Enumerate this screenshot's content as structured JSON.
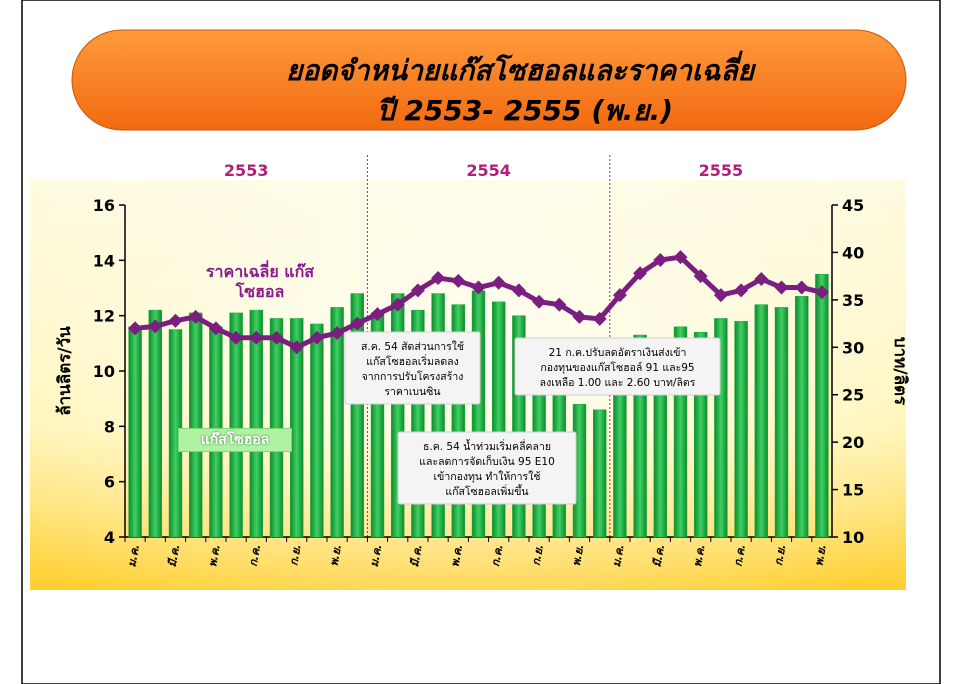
{
  "chart_data": {
    "type": "bar",
    "title": [
      "ยอดจำหน่ายแก๊สโซฮอลและราคาเฉลี่ย",
      "ปี 2553- 2555 (พ.ย.)"
    ],
    "periods": [
      "2553",
      "2554",
      "2555"
    ],
    "categories": [
      "ม.ค.",
      null,
      "มี.ค.",
      null,
      "พ.ค.",
      null,
      "ก.ค.",
      null,
      "ก.ย.",
      null,
      "พ.ย.",
      null,
      "ม.ค.",
      null,
      "มี.ค.",
      null,
      "พ.ค.",
      null,
      "ก.ค.",
      null,
      "ก.ย.",
      null,
      "พ.ย.",
      null,
      "ม.ค.",
      null,
      "มี.ค.",
      null,
      "พ.ค.",
      null,
      "ก.ค.",
      null,
      "ก.ย.",
      null,
      "พ.ย."
    ],
    "ylabel": "ล้านลิตร/วัน",
    "y2label": "บาท/ลิตร",
    "ylim": [
      4,
      16
    ],
    "yticks": [
      4,
      6,
      8,
      10,
      12,
      14,
      16
    ],
    "y2lim": [
      10,
      45
    ],
    "y2ticks": [
      10,
      15,
      20,
      25,
      30,
      35,
      40,
      45
    ],
    "series": [
      {
        "name": "แก๊สโซฮอล",
        "type": "bar",
        "color": "#1fae3f",
        "values": [
          11.6,
          12.2,
          11.5,
          12.1,
          11.6,
          12.1,
          12.2,
          11.9,
          11.9,
          11.7,
          12.3,
          12.8,
          12.1,
          12.8,
          12.2,
          12.8,
          12.4,
          12.9,
          12.5,
          12.0,
          10.8,
          9.8,
          8.8,
          8.6,
          10.5,
          11.3,
          11.2,
          11.6,
          11.4,
          11.9,
          11.8,
          12.4,
          12.3,
          12.7,
          13.5
        ]
      },
      {
        "name": "ราคาเฉลี่ย แก๊สโซฮอล",
        "type": "line",
        "axis": "y2",
        "color": "#7a1f80",
        "values": [
          32.0,
          32.2,
          32.8,
          33.2,
          32.0,
          31.0,
          31.0,
          31.0,
          30.0,
          31.0,
          31.5,
          32.5,
          33.5,
          34.5,
          36.0,
          37.3,
          37.0,
          36.3,
          36.8,
          36.0,
          34.8,
          34.5,
          33.2,
          33.0,
          35.5,
          37.8,
          39.2,
          39.5,
          37.5,
          35.5,
          36.0,
          37.2,
          36.3,
          36.3,
          35.8
        ]
      }
    ],
    "annotations": [
      [
        "ส.ค. 54 สัดส่วนการใช้",
        "แก๊สโซฮอลเริ่มลดลง",
        "จากการปรับโครงสร้าง",
        "ราคาเบนซิน"
      ],
      [
        "21 ก.ค.ปรับลดอัตราเงินส่งเข้า",
        "กองทุนของแก๊สโซฮอล์ 91 และ95",
        "ลงเหลือ 1.00 และ 2.60 บาท/ลิตร"
      ],
      [
        "ธ.ค. 54 น้ำท่วมเริ่มคลี่คลาย",
        "และลดการจัดเก็บเงิน 95 E10",
        "เข้ากองทุน ทำให้การใช้",
        "แก๊สโซฮอลเพิ่มขึ้น"
      ]
    ]
  }
}
